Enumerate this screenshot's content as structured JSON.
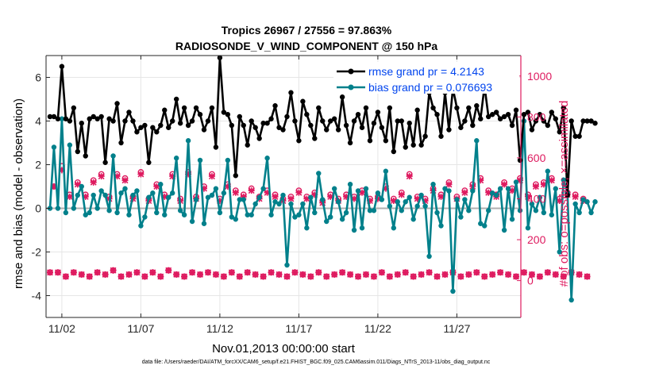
{
  "chart_data": {
    "type": "line",
    "title": "Tropics 26967 / 27556 = 97.863%",
    "subtitle": "RADIOSONDE_V_WIND_COMPONENT @ 150 hPa",
    "xlabel": "Nov.01,2013 00:00:00 start",
    "ylabel_left": "rmse and bias (model - observation)",
    "ylabel_right": "# of obs: o=possible; ×=assimilated",
    "xlim": [
      0.75,
      30.8
    ],
    "ylim_left": [
      -5,
      7
    ],
    "ylim_right": [
      -180,
      1100
    ],
    "x_ticks": [
      1.75,
      6.75,
      11.75,
      16.75,
      21.75,
      26.75
    ],
    "x_tick_labels": [
      "11/02",
      "11/07",
      "11/12",
      "11/17",
      "11/22",
      "11/27"
    ],
    "y_ticks_left": [
      -4,
      -2,
      0,
      2,
      4,
      6
    ],
    "y_ticks_right": [
      0,
      200,
      400,
      600,
      800,
      1000
    ],
    "zero_line": 0,
    "colors": {
      "rmse": "#000000",
      "bias": "#00808b",
      "obs": "#de1a5f",
      "legend_text": "#0044ee",
      "zero": "#b0b0b0"
    },
    "legend": [
      {
        "label": "rmse grand pr = 4.2143",
        "series": "rmse"
      },
      {
        "label": "bias grand pr = 0.076693",
        "series": "bias"
      }
    ],
    "series": [
      {
        "name": "rmse",
        "axis": "left",
        "x0": 1.0,
        "dx": 0.25,
        "values": [
          4.2,
          4.2,
          4.1,
          6.5,
          4.1,
          4.0,
          4.6,
          2.6,
          3.9,
          2.4,
          4.1,
          4.2,
          4.1,
          4.2,
          2.1,
          4.1,
          4.0,
          4.8,
          3.0,
          4.0,
          4.4,
          4.0,
          3.5,
          3.7,
          3.8,
          2.1,
          3.7,
          3.5,
          3.8,
          4.5,
          3.7,
          4.0,
          5.0,
          3.9,
          4.6,
          3.8,
          4.0,
          4.6,
          4.3,
          3.6,
          4.0,
          4.6,
          2.8,
          6.9,
          4.4,
          4.3,
          3.8,
          1.5,
          4.2,
          3.8,
          2.9,
          4.0,
          3.7,
          3.2,
          3.9,
          3.9,
          4.1,
          4.7,
          3.7,
          3.6,
          4.2,
          5.3,
          4.0,
          3.1,
          4.9,
          4.3,
          3.8,
          3.2,
          4.6,
          4.0,
          3.6,
          4.0,
          4.1,
          3.6,
          5.1,
          3.8,
          3.0,
          4.0,
          4.3,
          3.7,
          4.6,
          3.1,
          3.9,
          4.4,
          3.7,
          3.1,
          4.6,
          2.6,
          4.0,
          4.0,
          2.8,
          3.9,
          2.9,
          4.5,
          2.9,
          3.3,
          5.3,
          4.6,
          4.3,
          3.3,
          5.3,
          3.6,
          5.5,
          4.6,
          3.7,
          4.0,
          4.6,
          3.8,
          4.7,
          4.1,
          5.6,
          4.2,
          4.3,
          4.4,
          4.1,
          4.2,
          4.3,
          3.8,
          4.5,
          2.2,
          4.3,
          4.4,
          3.6,
          4.0,
          4.3,
          4.0,
          3.8,
          4.4,
          4.1,
          3.5,
          4.6,
          0.6,
          4.0,
          3.3,
          3.3,
          4.0,
          4.0,
          4.0,
          3.9
        ]
      },
      {
        "name": "bias",
        "axis": "left",
        "x0": 1.0,
        "dx": 0.25,
        "values": [
          0.0,
          2.8,
          0.0,
          4.1,
          -0.2,
          2.9,
          0.0,
          0.6,
          1.0,
          -0.3,
          -0.2,
          0.6,
          0.0,
          0.8,
          0.6,
          -0.1,
          2.4,
          -0.2,
          0.7,
          0.9,
          -0.3,
          0.6,
          0.8,
          -0.8,
          -0.4,
          0.5,
          0.7,
          -0.2,
          1.1,
          -0.3,
          0.5,
          0.7,
          2.3,
          -0.1,
          -0.3,
          3.1,
          -0.6,
          0.4,
          2.2,
          -0.7,
          0.5,
          0.6,
          0.9,
          -0.2,
          0.7,
          2.2,
          -0.4,
          -0.5,
          0.4,
          0.4,
          -0.3,
          -0.3,
          0.2,
          0.5,
          0.9,
          2.3,
          -0.3,
          0.3,
          0.2,
          0.6,
          -2.6,
          0.2,
          -0.4,
          -0.3,
          0.2,
          -0.9,
          0.5,
          -0.2,
          1.6,
          0.4,
          -0.6,
          -0.4,
          0.9,
          0.3,
          -0.5,
          -0.2,
          1.1,
          -1.0,
          0.8,
          -0.9,
          0.9,
          -0.1,
          -0.1,
          0.7,
          0.4,
          1.7,
          0.1,
          -0.9,
          0.3,
          -0.1,
          0.3,
          0.5,
          -0.5,
          0.1,
          0.6,
          0.1,
          -2.2,
          1.1,
          -0.2,
          -0.8,
          0.9,
          0.8,
          -3.8,
          0.4,
          -0.4,
          0.4,
          -0.1,
          0.8,
          3.1,
          -0.7,
          -0.8,
          -0.1,
          0.7,
          0.6,
          0.9,
          -1.0,
          0.9,
          -0.5,
          1.2,
          -0.1,
          4.0,
          -0.9,
          0.2,
          -0.1,
          0.5,
          -0.2,
          1.7,
          -0.3,
          0.9,
          -2.0,
          1.3,
          0.7,
          -4.2,
          0.2,
          -0.2,
          0.4,
          0.3,
          -0.2,
          0.3
        ]
      },
      {
        "name": "obs_possible",
        "axis": "right",
        "marker": "o",
        "x0": 1.0,
        "dx": 0.25,
        "values": [
          40,
          460,
          40,
          560,
          20,
          420,
          40,
          480,
          30,
          420,
          20,
          490,
          40,
          520,
          30,
          410,
          50,
          520,
          20,
          500,
          30,
          410,
          40,
          530,
          20,
          400,
          40,
          470,
          20,
          420,
          50,
          520,
          30,
          400,
          20,
          530,
          40,
          410,
          30,
          460,
          40,
          520,
          30,
          400,
          20,
          470,
          40,
          440,
          20,
          420,
          40,
          450,
          30,
          410,
          20,
          440,
          40,
          420,
          30,
          400,
          20,
          410,
          40,
          440,
          30,
          410,
          20,
          430,
          40,
          390,
          20,
          420,
          30,
          400,
          40,
          420,
          30,
          410,
          20,
          440,
          30,
          400,
          20,
          410,
          40,
          460,
          20,
          400,
          30,
          430,
          40,
          520,
          20,
          410,
          30,
          400,
          40,
          450,
          20,
          420,
          30,
          480,
          40,
          410,
          20,
          440,
          30,
          470,
          40,
          500,
          20,
          440,
          30,
          420,
          40,
          480,
          30,
          450,
          20,
          500,
          40,
          420,
          30,
          470,
          20,
          480,
          40,
          500,
          30,
          400,
          20,
          430,
          40,
          420,
          30,
          400,
          20
        ]
      },
      {
        "name": "obs_assimilated",
        "axis": "right",
        "marker": "x",
        "x0": 1.0,
        "dx": 0.25,
        "values": [
          40,
          460,
          40,
          540,
          20,
          410,
          40,
          470,
          30,
          410,
          20,
          480,
          40,
          510,
          30,
          400,
          50,
          510,
          20,
          490,
          30,
          400,
          40,
          520,
          20,
          390,
          40,
          460,
          20,
          410,
          50,
          510,
          30,
          390,
          20,
          520,
          40,
          400,
          30,
          450,
          40,
          510,
          30,
          390,
          20,
          460,
          40,
          430,
          20,
          410,
          40,
          440,
          30,
          400,
          20,
          430,
          40,
          410,
          30,
          390,
          20,
          400,
          40,
          430,
          30,
          400,
          20,
          420,
          40,
          380,
          20,
          410,
          30,
          390,
          40,
          410,
          30,
          400,
          20,
          430,
          30,
          390,
          20,
          400,
          40,
          450,
          20,
          390,
          30,
          420,
          40,
          510,
          20,
          400,
          30,
          390,
          40,
          440,
          20,
          410,
          30,
          470,
          40,
          400,
          20,
          430,
          30,
          460,
          40,
          490,
          20,
          430,
          30,
          410,
          40,
          470,
          30,
          440,
          20,
          490,
          40,
          410,
          30,
          460,
          20,
          470,
          40,
          490,
          30,
          390,
          20,
          420,
          40,
          410,
          30,
          390,
          20
        ]
      }
    ],
    "footer": "data file: /Users/raeder/DAI/ATM_forcXX/CAM6_setup/f.e21.FHIST_BGC.f09_025.CAM6assim.011/Diags_NTrS_2013-11/obs_diag_output.nc"
  }
}
